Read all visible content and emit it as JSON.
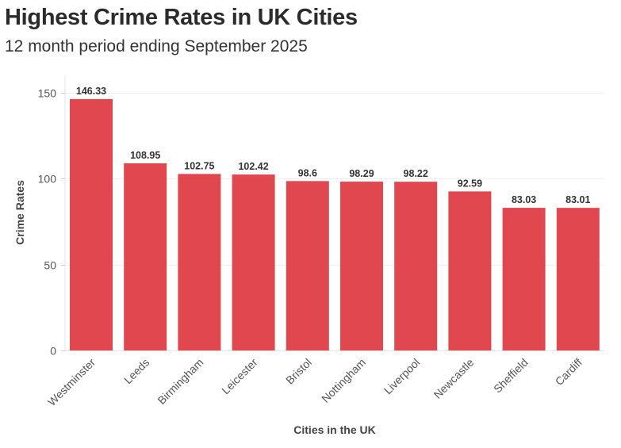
{
  "chart_data": {
    "type": "bar",
    "title": "Highest Crime Rates in UK Cities",
    "subtitle": "12 month period ending September 2025",
    "xlabel": "Cities in the UK",
    "ylabel": "Crime Rates",
    "categories": [
      "Westminster",
      "Leeds",
      "Birmingham",
      "Leicester",
      "Bristol",
      "Nottingham",
      "Liverpool",
      "Newcastle",
      "Sheffield",
      "Cardiff"
    ],
    "values": [
      146.33,
      108.95,
      102.75,
      102.42,
      98.6,
      98.29,
      98.22,
      92.59,
      83.03,
      83.01
    ],
    "value_labels": [
      "146.33",
      "108.95",
      "102.75",
      "102.42",
      "98.6",
      "98.29",
      "98.22",
      "92.59",
      "83.03",
      "83.01"
    ],
    "yticks": [
      0,
      50,
      100,
      150
    ],
    "ylim": [
      0,
      150
    ],
    "grid": true,
    "legend": "none",
    "bar_color": "#e0474f"
  }
}
